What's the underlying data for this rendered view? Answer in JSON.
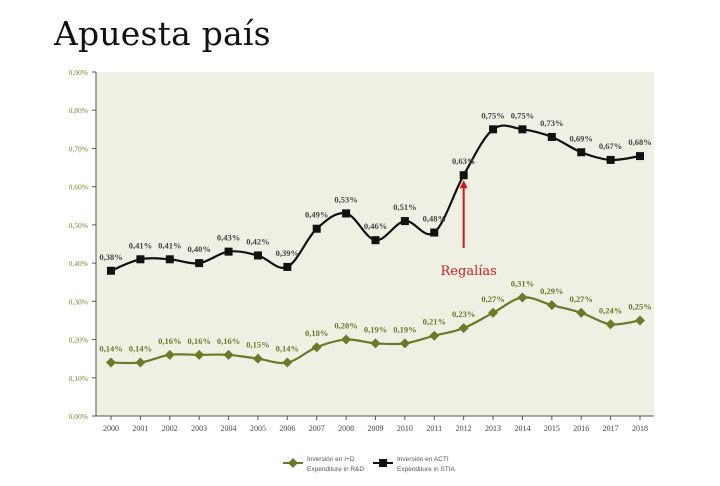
{
  "page": {
    "title": "Apuesta país"
  },
  "chart_data": {
    "type": "line",
    "title": "",
    "xlabel": "",
    "ylabel": "",
    "ylim": [
      0,
      0.9
    ],
    "yticks": [
      "0,00%",
      "0,10%",
      "0,20%",
      "0,30%",
      "0,40%",
      "0,50%",
      "0,60%",
      "0,70%",
      "0,80%",
      "0,90%"
    ],
    "categories": [
      "2000",
      "2001",
      "2002",
      "2003",
      "2004",
      "2005",
      "2006",
      "2007",
      "2008",
      "2009",
      "2010",
      "2011",
      "2012",
      "2013",
      "2014",
      "2015",
      "2016",
      "2017",
      "2018"
    ],
    "grid": false,
    "background": "#eef0e3",
    "legend_position": "bottom",
    "series": [
      {
        "name": "Inversión en I+D",
        "name_en": "Expenditure in R&D",
        "color": "#6b7a26",
        "marker": "diamond",
        "values": [
          0.14,
          0.14,
          0.16,
          0.16,
          0.16,
          0.15,
          0.14,
          0.18,
          0.2,
          0.19,
          0.19,
          0.21,
          0.23,
          0.27,
          0.31,
          0.29,
          0.27,
          0.24,
          0.25
        ],
        "labels": [
          "0,14%",
          "0,14%",
          "0,16%",
          "0,16%",
          "0,16%",
          "0,15%",
          "0,14%",
          "0,18%",
          "0,20%",
          "0,19%",
          "0,19%",
          "0,21%",
          "0,23%",
          "0,27%",
          "0,31%",
          "0,29%",
          "0,27%",
          "0,24%",
          "0,25%"
        ]
      },
      {
        "name": "Inversión en ACTI",
        "name_en": "Expenditure in STIA",
        "color": "#111111",
        "marker": "square",
        "values": [
          0.38,
          0.41,
          0.41,
          0.4,
          0.43,
          0.42,
          0.39,
          0.49,
          0.53,
          0.46,
          0.51,
          0.48,
          0.63,
          0.75,
          0.75,
          0.73,
          0.69,
          0.67,
          0.68
        ],
        "labels": [
          "0,38%",
          "0,41%",
          "0,41%",
          "0,40%",
          "0,43%",
          "0,42%",
          "0,39%",
          "0,49%",
          "0,53%",
          "0,46%",
          "0,51%",
          "0,48%",
          "0,63%",
          "0,75%",
          "0,75%",
          "0,73%",
          "0,69%",
          "0,67%",
          "0,68%"
        ]
      }
    ],
    "annotations": [
      {
        "text": "Regalías",
        "category": "2012",
        "color": "#d11a1a"
      }
    ]
  }
}
